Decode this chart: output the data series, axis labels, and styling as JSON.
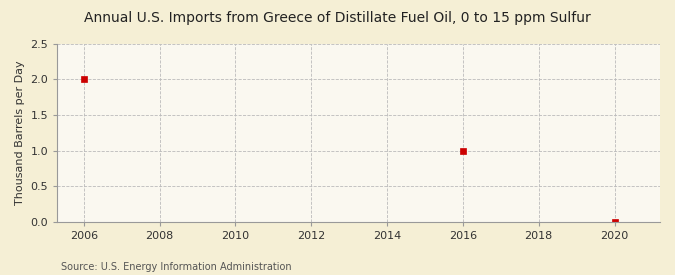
{
  "title": "Annual U.S. Imports from Greece of Distillate Fuel Oil, 0 to 15 ppm Sulfur",
  "ylabel": "Thousand Barrels per Day",
  "source": "Source: U.S. Energy Information Administration",
  "outer_bg": "#f5efd5",
  "plot_bg": "#faf8f0",
  "data_x": [
    2006,
    2016,
    2020
  ],
  "data_y": [
    2.0,
    1.0,
    0.0
  ],
  "marker_color": "#cc0000",
  "marker_size": 4,
  "xlim": [
    2005.3,
    2021.2
  ],
  "ylim": [
    0.0,
    2.5
  ],
  "xticks": [
    2006,
    2008,
    2010,
    2012,
    2014,
    2016,
    2018,
    2020
  ],
  "yticks": [
    0.0,
    0.5,
    1.0,
    1.5,
    2.0,
    2.5
  ],
  "grid_color": "#bbbbbb",
  "grid_linestyle": "--",
  "grid_linewidth": 0.6,
  "spine_color": "#999999",
  "title_fontsize": 10,
  "ylabel_fontsize": 8,
  "tick_fontsize": 8,
  "source_fontsize": 7
}
